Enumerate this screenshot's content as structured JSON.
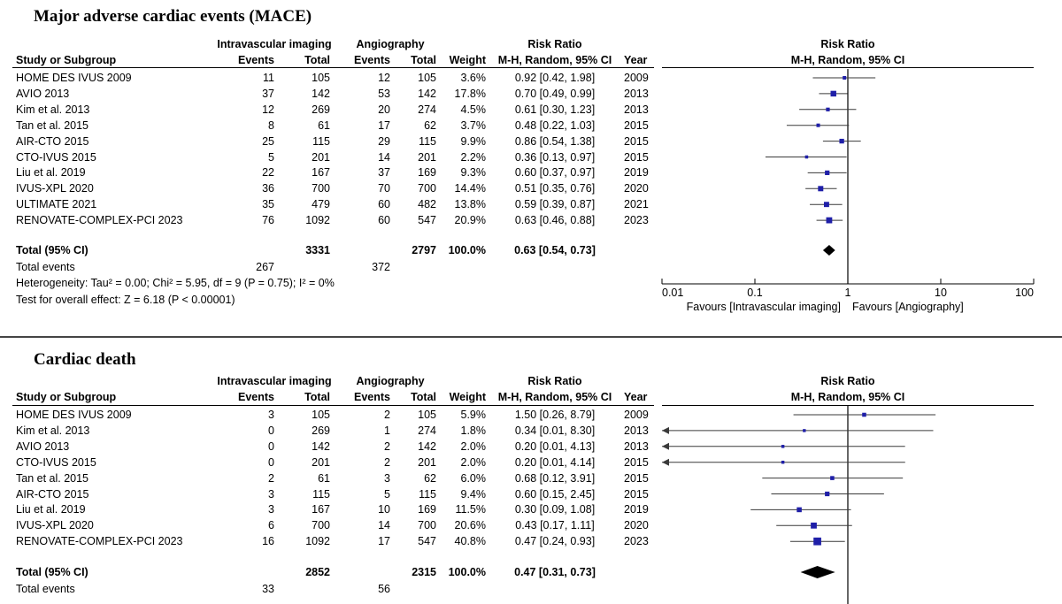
{
  "panels": [
    {
      "title": "Major adverse cardiac events (MACE)",
      "header": {
        "group1": "Intravascular imaging",
        "group2": "Angiography",
        "rr": "Risk Ratio",
        "study": "Study or Subgroup",
        "events1": "Events",
        "total1": "Total",
        "events2": "Events",
        "total2": "Total",
        "weight": "Weight",
        "method": "M-H, Random, 95% CI",
        "year": "Year",
        "plot_title": "Risk Ratio",
        "plot_sub": "M-H, Random, 95% CI"
      },
      "rows": [
        {
          "study": "HOME DES IVUS 2009",
          "e1": "11",
          "t1": "105",
          "e2": "12",
          "t2": "105",
          "w": "3.6%",
          "ci": "0.92 [0.42, 1.98]",
          "year": "2009"
        },
        {
          "study": "AVIO 2013",
          "e1": "37",
          "t1": "142",
          "e2": "53",
          "t2": "142",
          "w": "17.8%",
          "ci": "0.70 [0.49, 0.99]",
          "year": "2013"
        },
        {
          "study": "Kim et al. 2013",
          "e1": "12",
          "t1": "269",
          "e2": "20",
          "t2": "274",
          "w": "4.5%",
          "ci": "0.61 [0.30, 1.23]",
          "year": "2013"
        },
        {
          "study": "Tan et al. 2015",
          "e1": "8",
          "t1": "61",
          "e2": "17",
          "t2": "62",
          "w": "3.7%",
          "ci": "0.48 [0.22, 1.03]",
          "year": "2015"
        },
        {
          "study": "AIR-CTO 2015",
          "e1": "25",
          "t1": "115",
          "e2": "29",
          "t2": "115",
          "w": "9.9%",
          "ci": "0.86 [0.54, 1.38]",
          "year": "2015"
        },
        {
          "study": "CTO-IVUS 2015",
          "e1": "5",
          "t1": "201",
          "e2": "14",
          "t2": "201",
          "w": "2.2%",
          "ci": "0.36 [0.13, 0.97]",
          "year": "2015"
        },
        {
          "study": "Liu et al. 2019",
          "e1": "22",
          "t1": "167",
          "e2": "37",
          "t2": "169",
          "w": "9.3%",
          "ci": "0.60 [0.37, 0.97]",
          "year": "2019"
        },
        {
          "study": "IVUS-XPL 2020",
          "e1": "36",
          "t1": "700",
          "e2": "70",
          "t2": "700",
          "w": "14.4%",
          "ci": "0.51 [0.35, 0.76]",
          "year": "2020"
        },
        {
          "study": "ULTIMATE 2021",
          "e1": "35",
          "t1": "479",
          "e2": "60",
          "t2": "482",
          "w": "13.8%",
          "ci": "0.59 [0.39, 0.87]",
          "year": "2021"
        },
        {
          "study": "RENOVATE-COMPLEX-PCI 2023",
          "e1": "76",
          "t1": "1092",
          "e2": "60",
          "t2": "547",
          "w": "20.9%",
          "ci": "0.63 [0.46, 0.88]",
          "year": "2023"
        }
      ],
      "total": {
        "label": "Total (95% CI)",
        "t1": "3331",
        "t2": "2797",
        "w": "100.0%",
        "ci": "0.63 [0.54, 0.73]"
      },
      "total_events": {
        "label": "Total events",
        "e1": "267",
        "e2": "372"
      },
      "heterogeneity": "Heterogeneity: Tau² = 0.00; Chi² = 5.95, df = 9 (P = 0.75); I² = 0%",
      "overall_effect": "Test for overall effect: Z = 6.18 (P < 0.00001)",
      "axis": {
        "ticks": [
          "0.01",
          "0.1",
          "1",
          "10",
          "100"
        ],
        "favours_left": "Favours [Intravascular imaging]",
        "favours_right": "Favours [Angiography]"
      }
    },
    {
      "title": "Cardiac death",
      "header": {
        "group1": "Intravascular imaging",
        "group2": "Angiography",
        "rr": "Risk Ratio",
        "study": "Study or Subgroup",
        "events1": "Events",
        "total1": "Total",
        "events2": "Events",
        "total2": "Total",
        "weight": "Weight",
        "method": "M-H, Random, 95% CI",
        "year": "Year",
        "plot_title": "Risk Ratio",
        "plot_sub": "M-H, Random, 95% CI"
      },
      "rows": [
        {
          "study": "HOME DES IVUS 2009",
          "e1": "3",
          "t1": "105",
          "e2": "2",
          "t2": "105",
          "w": "5.9%",
          "ci": "1.50 [0.26, 8.79]",
          "year": "2009"
        },
        {
          "study": "Kim et al. 2013",
          "e1": "0",
          "t1": "269",
          "e2": "1",
          "t2": "274",
          "w": "1.8%",
          "ci": "0.34 [0.01, 8.30]",
          "year": "2013"
        },
        {
          "study": "AVIO 2013",
          "e1": "0",
          "t1": "142",
          "e2": "2",
          "t2": "142",
          "w": "2.0%",
          "ci": "0.20 [0.01, 4.13]",
          "year": "2013"
        },
        {
          "study": "CTO-IVUS 2015",
          "e1": "0",
          "t1": "201",
          "e2": "2",
          "t2": "201",
          "w": "2.0%",
          "ci": "0.20 [0.01, 4.14]",
          "year": "2015"
        },
        {
          "study": "Tan et al. 2015",
          "e1": "2",
          "t1": "61",
          "e2": "3",
          "t2": "62",
          "w": "6.0%",
          "ci": "0.68 [0.12, 3.91]",
          "year": "2015"
        },
        {
          "study": "AIR-CTO 2015",
          "e1": "3",
          "t1": "115",
          "e2": "5",
          "t2": "115",
          "w": "9.4%",
          "ci": "0.60 [0.15, 2.45]",
          "year": "2015"
        },
        {
          "study": "Liu et al. 2019",
          "e1": "3",
          "t1": "167",
          "e2": "10",
          "t2": "169",
          "w": "11.5%",
          "ci": "0.30 [0.09, 1.08]",
          "year": "2019"
        },
        {
          "study": "IVUS-XPL 2020",
          "e1": "6",
          "t1": "700",
          "e2": "14",
          "t2": "700",
          "w": "20.6%",
          "ci": "0.43 [0.17, 1.11]",
          "year": "2020"
        },
        {
          "study": "RENOVATE-COMPLEX-PCI 2023",
          "e1": "16",
          "t1": "1092",
          "e2": "17",
          "t2": "547",
          "w": "40.8%",
          "ci": "0.47 [0.24, 0.93]",
          "year": "2023"
        }
      ],
      "total": {
        "label": "Total (95% CI)",
        "t1": "2852",
        "t2": "2315",
        "w": "100.0%",
        "ci": "0.47 [0.31, 0.73]"
      },
      "total_events": {
        "label": "Total events",
        "e1": "33",
        "e2": "56"
      }
    }
  ],
  "colors": {
    "marker": "#1f1fa8",
    "line": "#3a3a3a",
    "diamond": "#000000",
    "rule": "#555555"
  },
  "chart_data": [
    {
      "type": "forest",
      "title": "Major adverse cardiac events (MACE)",
      "x_scale": "log",
      "xlim": [
        0.01,
        100
      ],
      "reference": 1,
      "studies": [
        {
          "name": "HOME DES IVUS 2009",
          "rr": 0.92,
          "lo": 0.42,
          "hi": 1.98,
          "weight": 3.6
        },
        {
          "name": "AVIO 2013",
          "rr": 0.7,
          "lo": 0.49,
          "hi": 0.99,
          "weight": 17.8
        },
        {
          "name": "Kim et al. 2013",
          "rr": 0.61,
          "lo": 0.3,
          "hi": 1.23,
          "weight": 4.5
        },
        {
          "name": "Tan et al. 2015",
          "rr": 0.48,
          "lo": 0.22,
          "hi": 1.03,
          "weight": 3.7
        },
        {
          "name": "AIR-CTO 2015",
          "rr": 0.86,
          "lo": 0.54,
          "hi": 1.38,
          "weight": 9.9
        },
        {
          "name": "CTO-IVUS 2015",
          "rr": 0.36,
          "lo": 0.13,
          "hi": 0.97,
          "weight": 2.2
        },
        {
          "name": "Liu et al. 2019",
          "rr": 0.6,
          "lo": 0.37,
          "hi": 0.97,
          "weight": 9.3
        },
        {
          "name": "IVUS-XPL 2020",
          "rr": 0.51,
          "lo": 0.35,
          "hi": 0.76,
          "weight": 14.4
        },
        {
          "name": "ULTIMATE 2021",
          "rr": 0.59,
          "lo": 0.39,
          "hi": 0.87,
          "weight": 13.8
        },
        {
          "name": "RENOVATE-COMPLEX-PCI 2023",
          "rr": 0.63,
          "lo": 0.46,
          "hi": 0.88,
          "weight": 20.9
        }
      ],
      "pooled": {
        "rr": 0.63,
        "lo": 0.54,
        "hi": 0.73
      }
    },
    {
      "type": "forest",
      "title": "Cardiac death",
      "x_scale": "log",
      "xlim": [
        0.01,
        100
      ],
      "reference": 1,
      "studies": [
        {
          "name": "HOME DES IVUS 2009",
          "rr": 1.5,
          "lo": 0.26,
          "hi": 8.79,
          "weight": 5.9
        },
        {
          "name": "Kim et al. 2013",
          "rr": 0.34,
          "lo": 0.01,
          "hi": 8.3,
          "weight": 1.8
        },
        {
          "name": "AVIO 2013",
          "rr": 0.2,
          "lo": 0.01,
          "hi": 4.13,
          "weight": 2.0
        },
        {
          "name": "CTO-IVUS 2015",
          "rr": 0.2,
          "lo": 0.01,
          "hi": 4.14,
          "weight": 2.0
        },
        {
          "name": "Tan et al. 2015",
          "rr": 0.68,
          "lo": 0.12,
          "hi": 3.91,
          "weight": 6.0
        },
        {
          "name": "AIR-CTO 2015",
          "rr": 0.6,
          "lo": 0.15,
          "hi": 2.45,
          "weight": 9.4
        },
        {
          "name": "Liu et al. 2019",
          "rr": 0.3,
          "lo": 0.09,
          "hi": 1.08,
          "weight": 11.5
        },
        {
          "name": "IVUS-XPL 2020",
          "rr": 0.43,
          "lo": 0.17,
          "hi": 1.11,
          "weight": 20.6
        },
        {
          "name": "RENOVATE-COMPLEX-PCI 2023",
          "rr": 0.47,
          "lo": 0.24,
          "hi": 0.93,
          "weight": 40.8
        }
      ],
      "pooled": {
        "rr": 0.47,
        "lo": 0.31,
        "hi": 0.73
      }
    }
  ]
}
